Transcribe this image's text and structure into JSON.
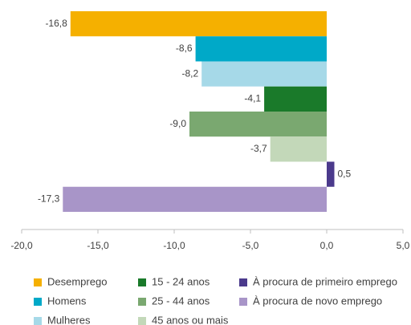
{
  "chart_data": {
    "type": "hbar",
    "categories": [
      "Desemprego",
      "Homens",
      "Mulheres",
      "15 - 24 anos",
      "25 - 44 anos",
      "45 anos ou mais",
      "À procura de primeiro emprego",
      "À procura de novo emprego"
    ],
    "values": [
      -16.8,
      -8.6,
      -8.2,
      -4.1,
      -9.0,
      -3.7,
      0.5,
      -17.3
    ],
    "value_labels": [
      "-16,8",
      "-8,6",
      "-8,2",
      "-4,1",
      "-9,0",
      "-3,7",
      "0,5",
      "-17,3"
    ],
    "colors": [
      "#f5b000",
      "#00a9c8",
      "#a6d9e8",
      "#1a7a2a",
      "#7aa870",
      "#c3d8b9",
      "#4b3a8c",
      "#a895c8"
    ],
    "xlim": [
      -20,
      5
    ],
    "xticks": [
      {
        "value": -20,
        "label": "-20,0"
      },
      {
        "value": -15,
        "label": "-15,0"
      },
      {
        "value": -10,
        "label": "-10,0"
      },
      {
        "value": -5,
        "label": "-5,0"
      },
      {
        "value": 0,
        "label": "0,0"
      },
      {
        "value": 5,
        "label": "5,0"
      }
    ]
  }
}
